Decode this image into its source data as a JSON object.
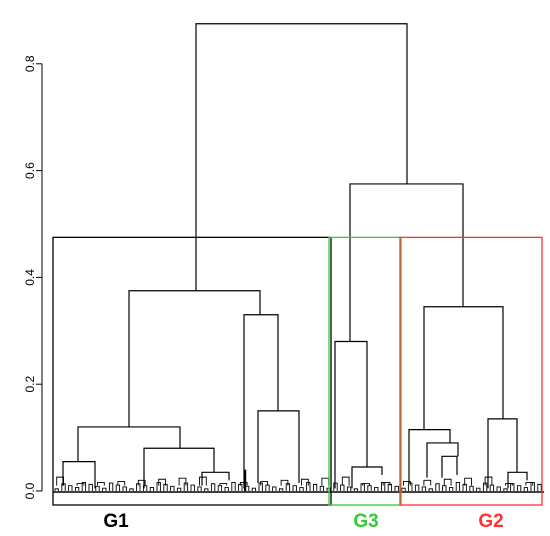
{
  "chart_data": {
    "type": "dendrogram",
    "ylim": [
      0,
      0.9
    ],
    "y_ticks": [
      0.0,
      0.2,
      0.4,
      0.6,
      0.8
    ],
    "y_tick_labels": [
      "0.0",
      "0.2",
      "0.4",
      "0.6",
      "0.8"
    ],
    "groups": [
      {
        "label": "G1",
        "color": "#000000",
        "cut_height": 0.475
      },
      {
        "label": "G3",
        "color": "#33cc33",
        "cut_height": 0.475
      },
      {
        "label": "G2",
        "color": "#ff3333",
        "cut_height": 0.475
      }
    ],
    "merges": [
      {
        "height": 0.875,
        "left_at": 0.375,
        "right_at": 0.575
      },
      {
        "height": 0.575,
        "left_at": 0.28,
        "right_at": 0.345
      },
      {
        "height": 0.375,
        "left_at": 0.12,
        "right_at": 0.33
      },
      {
        "height": 0.345,
        "left_at": 0.115,
        "right_at": 0.135
      },
      {
        "height": 0.33,
        "left_at": 0.005,
        "right_at": 0.15
      },
      {
        "height": 0.28,
        "left_at": 0.005,
        "right_at": 0.045
      },
      {
        "height": 0.15,
        "left_at": 0.015,
        "right_at": 0.015
      },
      {
        "height": 0.135,
        "left_at": 0.005,
        "right_at": 0.035
      },
      {
        "height": 0.12,
        "left_at": 0.055,
        "right_at": 0.08
      },
      {
        "height": 0.115,
        "left_at": 0.015,
        "right_at": 0.09
      },
      {
        "height": 0.09,
        "left_at": 0.025,
        "right_at": 0.065
      },
      {
        "height": 0.08,
        "left_at": 0.005,
        "right_at": 0.035
      },
      {
        "height": 0.065,
        "left_at": 0.025,
        "right_at": 0.03
      },
      {
        "height": 0.055,
        "left_at": 0.01,
        "right_at": 0.005
      },
      {
        "height": 0.045,
        "left_at": 0.005,
        "right_at": 0.03
      },
      {
        "height": 0.035,
        "left_at": 0.01,
        "right_at": 0.02
      },
      {
        "height": 0.035,
        "left_at": 0.005,
        "right_at": 0.02
      }
    ]
  }
}
